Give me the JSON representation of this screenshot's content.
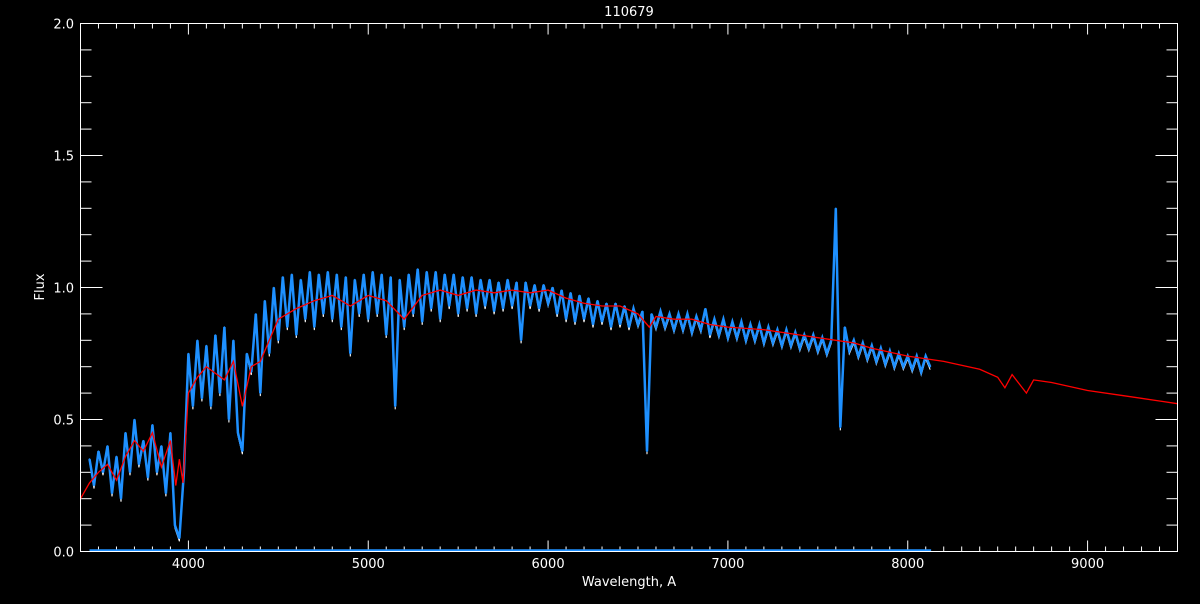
{
  "chart_data": {
    "type": "line",
    "title": "110679",
    "xlabel": "Wavelength, A",
    "ylabel": "Flux",
    "xlim": [
      3400,
      9500
    ],
    "ylim": [
      0,
      2
    ],
    "x_ticks": [
      4000,
      5000,
      6000,
      7000,
      8000,
      9000
    ],
    "y_ticks": [
      "0.0",
      "0.5",
      "1.0",
      "1.5",
      "2.0"
    ],
    "grid": false,
    "colors": {
      "background": "#000000",
      "axes": "#ffffff",
      "observed": "#1e90ff",
      "model": "#ff0000"
    },
    "series": [
      {
        "key": "observed",
        "x_start": 3450,
        "x_step": 25,
        "values": [
          0.35,
          0.25,
          0.38,
          0.3,
          0.4,
          0.22,
          0.36,
          0.2,
          0.45,
          0.3,
          0.5,
          0.33,
          0.42,
          0.28,
          0.48,
          0.3,
          0.4,
          0.22,
          0.45,
          0.1,
          0.05,
          0.3,
          0.75,
          0.55,
          0.8,
          0.58,
          0.78,
          0.55,
          0.82,
          0.6,
          0.85,
          0.5,
          0.8,
          0.45,
          0.38,
          0.75,
          0.68,
          0.9,
          0.6,
          0.95,
          0.75,
          1.0,
          0.8,
          1.04,
          0.85,
          1.05,
          0.82,
          1.03,
          0.88,
          1.06,
          0.85,
          1.05,
          0.9,
          1.06,
          0.88,
          1.05,
          0.85,
          1.04,
          0.75,
          1.03,
          0.9,
          1.05,
          0.88,
          1.06,
          0.9,
          1.05,
          0.82,
          1.04,
          0.55,
          1.03,
          0.85,
          1.05,
          0.9,
          1.07,
          0.87,
          1.06,
          0.92,
          1.06,
          0.88,
          1.05,
          0.93,
          1.05,
          0.9,
          1.04,
          0.92,
          1.04,
          0.9,
          1.03,
          0.93,
          1.03,
          0.91,
          1.02,
          0.92,
          1.03,
          0.93,
          1.02,
          0.8,
          1.02,
          0.93,
          1.01,
          0.92,
          1.01,
          0.94,
          1.0,
          0.9,
          0.99,
          0.88,
          0.98,
          0.87,
          0.97,
          0.88,
          0.96,
          0.86,
          0.95,
          0.87,
          0.94,
          0.85,
          0.94,
          0.86,
          0.93,
          0.85,
          0.92,
          0.86,
          0.91,
          0.38,
          0.9,
          0.85,
          0.91,
          0.85,
          0.9,
          0.84,
          0.9,
          0.84,
          0.9,
          0.83,
          0.89,
          0.84,
          0.92,
          0.82,
          0.88,
          0.82,
          0.88,
          0.81,
          0.87,
          0.81,
          0.87,
          0.8,
          0.86,
          0.8,
          0.86,
          0.79,
          0.85,
          0.79,
          0.84,
          0.78,
          0.84,
          0.78,
          0.83,
          0.77,
          0.82,
          0.77,
          0.82,
          0.76,
          0.81,
          0.75,
          0.8,
          1.3,
          0.47,
          0.85,
          0.76,
          0.8,
          0.74,
          0.79,
          0.73,
          0.78,
          0.72,
          0.77,
          0.71,
          0.76,
          0.7,
          0.75,
          0.7,
          0.74,
          0.69,
          0.74,
          0.68,
          0.74,
          0.7
        ]
      },
      {
        "key": "model",
        "x": [
          3400,
          3450,
          3500,
          3550,
          3600,
          3650,
          3700,
          3750,
          3800,
          3850,
          3900,
          3930,
          3950,
          3970,
          4000,
          4050,
          4100,
          4200,
          4250,
          4300,
          4350,
          4400,
          4450,
          4500,
          4600,
          4700,
          4800,
          4900,
          5000,
          5100,
          5200,
          5300,
          5400,
          5500,
          5600,
          5700,
          5800,
          5900,
          6000,
          6100,
          6200,
          6300,
          6400,
          6500,
          6563,
          6600,
          6700,
          6800,
          6900,
          7000,
          7200,
          7400,
          7600,
          7700,
          7800,
          8000,
          8200,
          8400,
          8500,
          8540,
          8580,
          8660,
          8700,
          8800,
          9000,
          9200,
          9400,
          9500
        ],
        "y": [
          0.2,
          0.26,
          0.3,
          0.33,
          0.27,
          0.36,
          0.42,
          0.38,
          0.45,
          0.32,
          0.42,
          0.25,
          0.35,
          0.26,
          0.6,
          0.66,
          0.7,
          0.65,
          0.72,
          0.55,
          0.7,
          0.72,
          0.8,
          0.88,
          0.92,
          0.95,
          0.97,
          0.93,
          0.97,
          0.95,
          0.88,
          0.97,
          0.99,
          0.97,
          0.99,
          0.98,
          0.99,
          0.98,
          0.99,
          0.96,
          0.94,
          0.93,
          0.93,
          0.9,
          0.85,
          0.89,
          0.88,
          0.88,
          0.86,
          0.85,
          0.84,
          0.82,
          0.8,
          0.79,
          0.77,
          0.74,
          0.72,
          0.69,
          0.66,
          0.62,
          0.67,
          0.6,
          0.65,
          0.64,
          0.61,
          0.59,
          0.57,
          0.56
        ]
      },
      {
        "key": "error",
        "x": [
          3450,
          8130
        ],
        "y": [
          0.005,
          0.005
        ]
      }
    ]
  }
}
